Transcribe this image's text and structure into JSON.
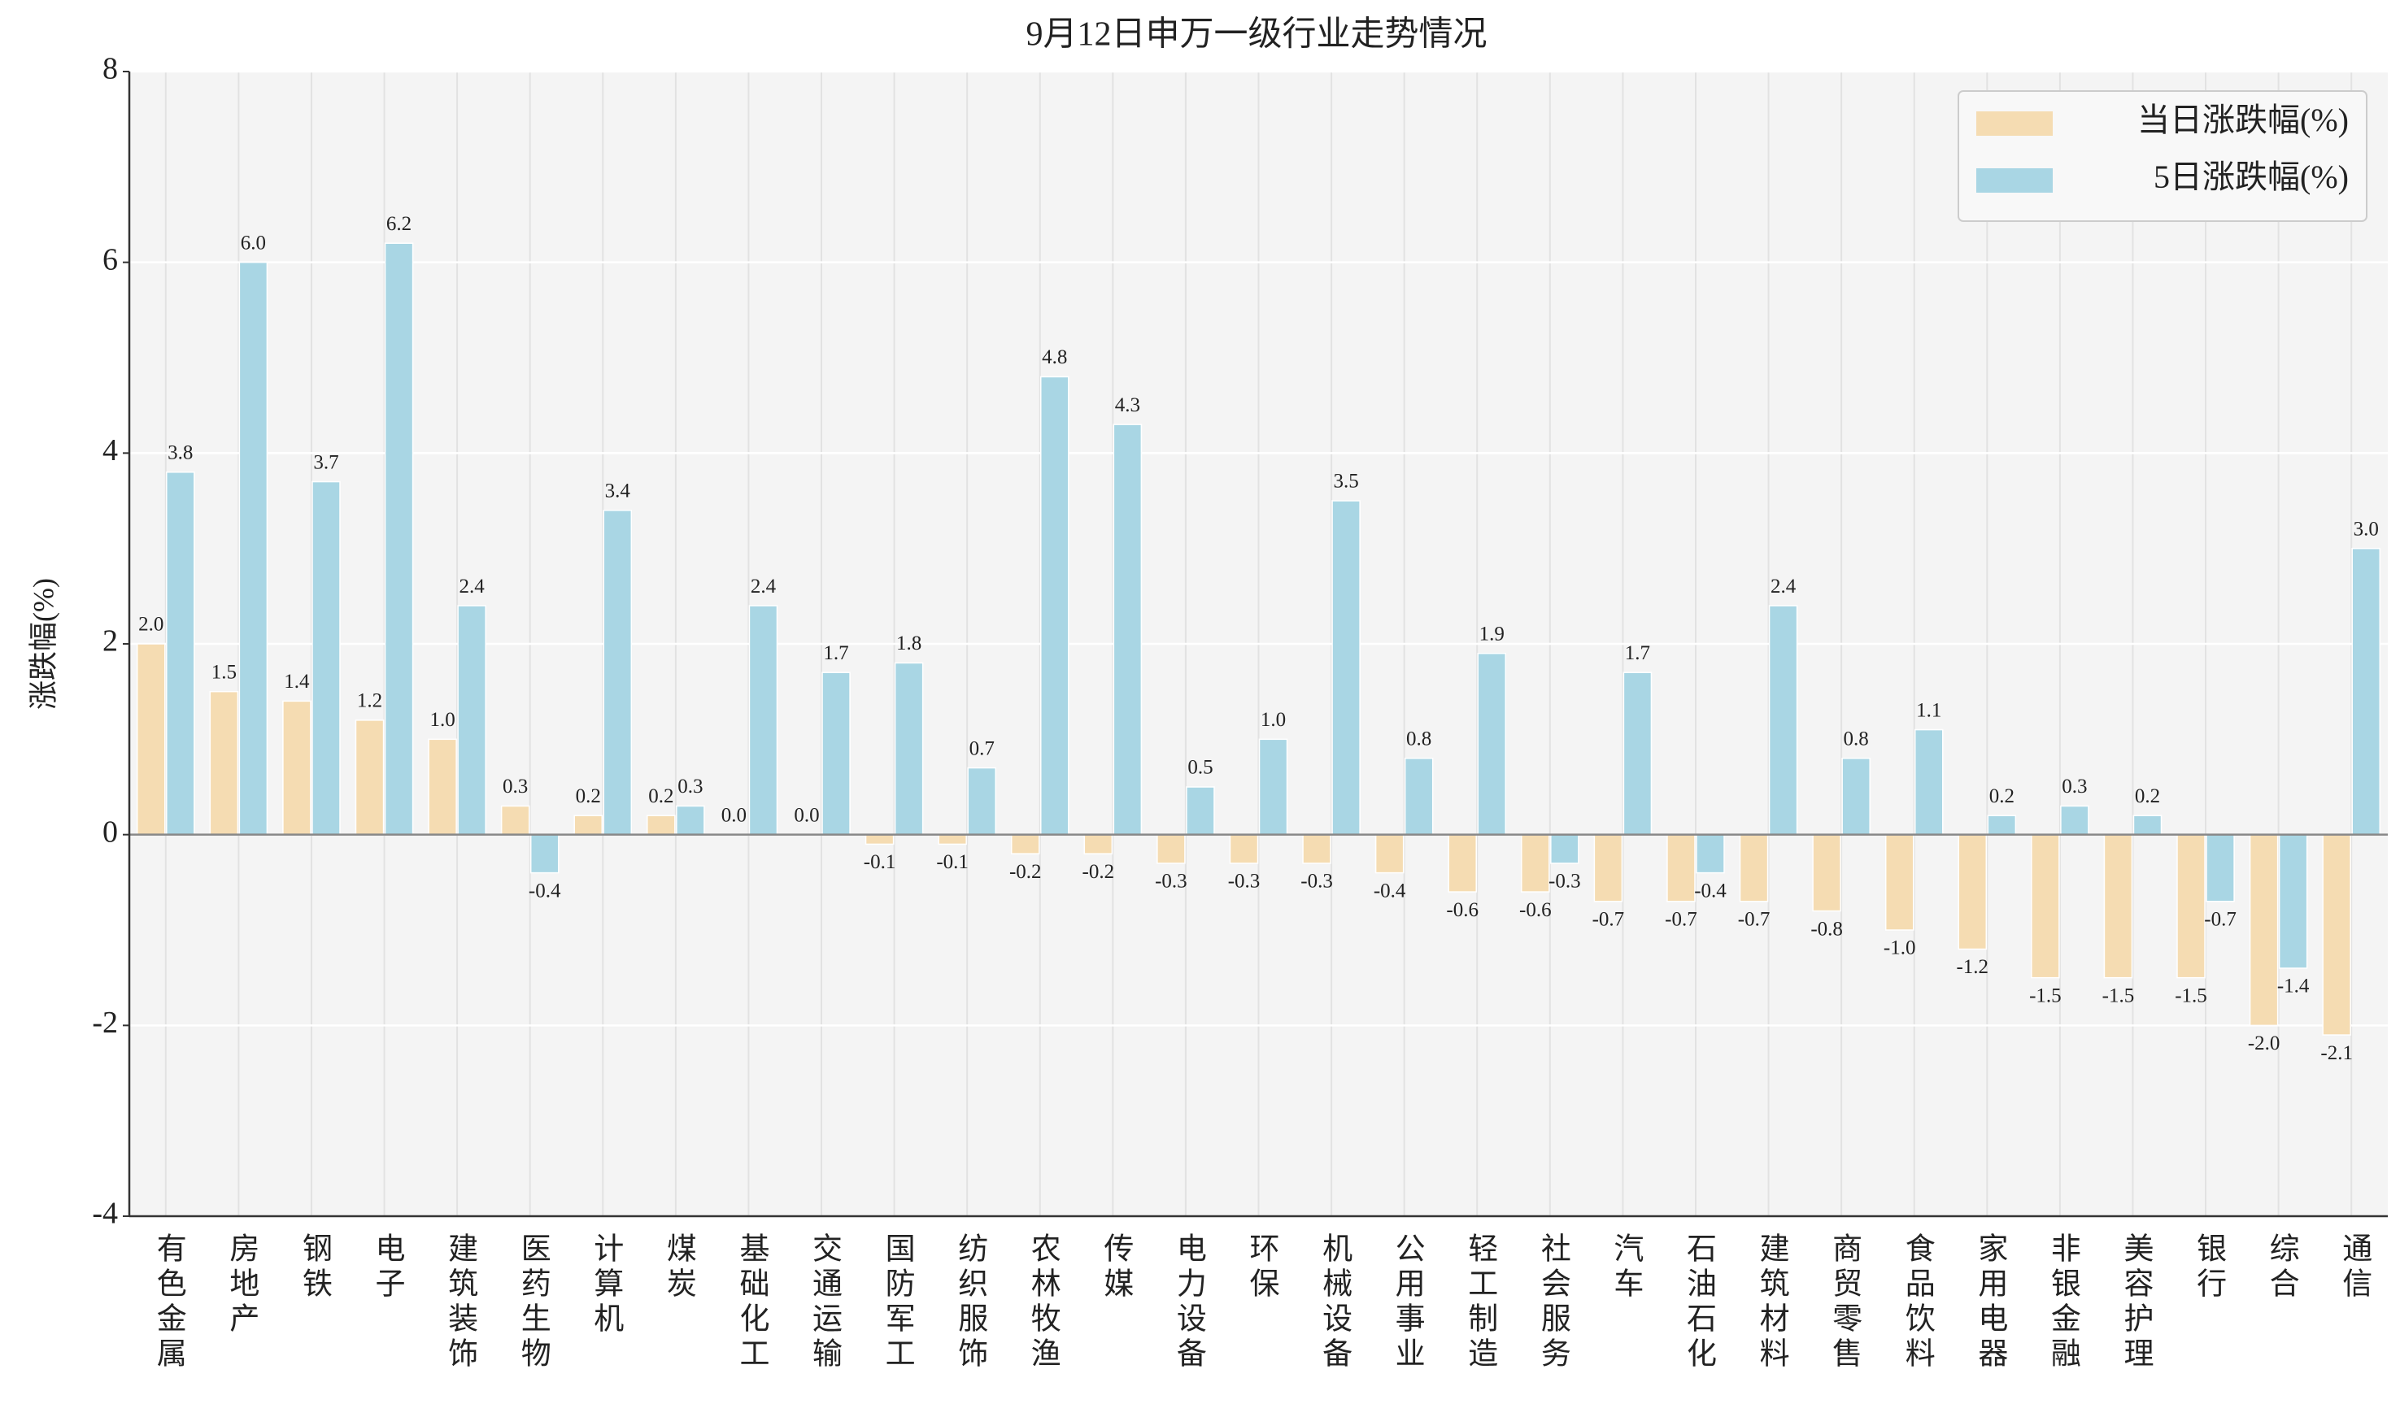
{
  "chart_data": {
    "type": "bar",
    "title": "9月12日申万一级行业走势情况",
    "y_label": "涨跌幅(%)",
    "categories": [
      "有色金属",
      "房地产",
      "钢铁",
      "电子",
      "建筑装饰",
      "医药生物",
      "计算机",
      "煤炭",
      "基础化工",
      "交通运输",
      "国防军工",
      "纺织服饰",
      "农林牧渔",
      "传媒",
      "电力设备",
      "环保",
      "机械设备",
      "公用事业",
      "轻工制造",
      "社会服务",
      "汽车",
      "石油石化",
      "建筑材料",
      "商贸零售",
      "食品饮料",
      "家用电器",
      "非银金融",
      "美容护理",
      "银行",
      "综合",
      "通信"
    ],
    "series": [
      {
        "name": "当日涨跌幅(%)",
        "color": "#f5dcb2",
        "values": [
          2.0,
          1.5,
          1.4,
          1.2,
          1.0,
          0.3,
          0.2,
          0.2,
          0,
          0,
          -0.1,
          -0.1,
          -0.2,
          -0.2,
          -0.3,
          -0.3,
          -0.3,
          -0.4,
          -0.6,
          -0.6,
          -0.7,
          -0.7,
          -0.7,
          -0.8,
          -1.0,
          -1.2,
          -1.5,
          -1.5,
          -1.5,
          -2.0,
          -2.1
        ],
        "value_labels": [
          "2.0",
          "1.5",
          "1.4",
          "1.2",
          "1.0",
          "0.3",
          "0.2",
          "0.2",
          "0.0",
          "0.0",
          "-0.1",
          "-0.1",
          "-0.2",
          "-0.2",
          "-0.3",
          "-0.3",
          "-0.3",
          "-0.4",
          "-0.6",
          "-0.6",
          "-0.7",
          "-0.7",
          "-0.7",
          "-0.8",
          "-1.0",
          "-1.2",
          "-1.5",
          "-1.5",
          "-1.5",
          "-2.0",
          "-2.1"
        ]
      },
      {
        "name": "5日涨跌幅(%)",
        "color": "#a9d6e4",
        "values": [
          3.8,
          6.0,
          3.7,
          6.2,
          2.4,
          -0.4,
          3.4,
          0.3,
          2.4,
          1.7,
          1.8,
          0.7,
          4.8,
          4.3,
          0.5,
          1.0,
          3.5,
          0.8,
          1.9,
          -0.3,
          1.7,
          -0.4,
          2.4,
          0.8,
          1.1,
          0.2,
          0.3,
          0.2,
          -0.7,
          -1.4,
          3.0
        ],
        "value_labels": [
          "3.8",
          "6.0",
          "3.7",
          "6.2",
          "2.4",
          "-0.4",
          "3.4",
          "0.3",
          "2.4",
          "1.7",
          "1.8",
          "0.7",
          "4.8",
          "4.3",
          "0.5",
          "1.0",
          "3.5",
          "0.8",
          "1.9",
          "-0.3",
          "1.7",
          "-0.4",
          "2.4",
          "0.8",
          "1.1",
          "0.2",
          "0.3",
          "0.2",
          "-0.7",
          "-1.4",
          "3.0"
        ]
      }
    ],
    "ylim": [
      -4,
      8
    ],
    "yticks": [
      -4,
      -2,
      0,
      2,
      4,
      6,
      8
    ],
    "grid": true,
    "legend": "upper right"
  }
}
